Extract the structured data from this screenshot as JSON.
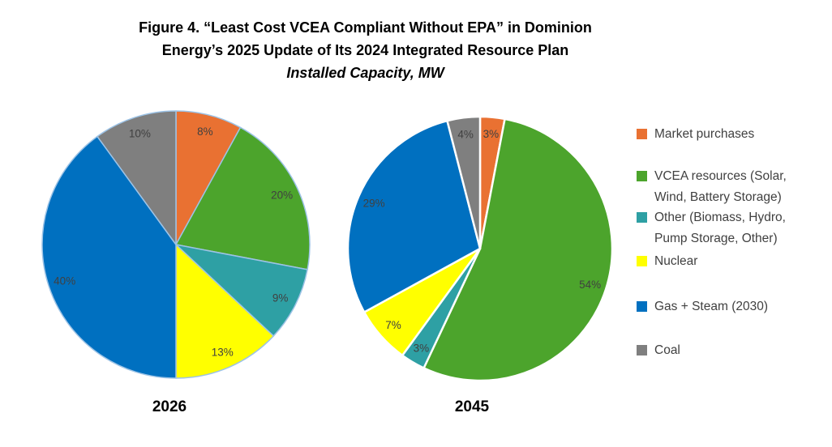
{
  "title": {
    "line1": "Figure 4. “Least Cost VCEA Compliant Without EPA” in Dominion",
    "line2": "Energy’s 2025 Update of Its 2024 Integrated Resource Plan",
    "line3": "Installed Capacity, MW"
  },
  "colors": {
    "market_purchases": "#E97132",
    "vcea_resources": "#4CA42C",
    "other": "#2EA0A4",
    "nuclear": "#FFFF00",
    "gas_steam": "#0070C0",
    "coal": "#7F7F7F",
    "data_label_text": "#404040",
    "left_pie_slice_border": "#9DC3E6",
    "right_pie_slice_border": "#FFFFFF"
  },
  "legend": {
    "position": "right",
    "items": [
      {
        "label": "Market purchases",
        "color": "#E97132"
      },
      {
        "label": "VCEA resources (Solar, Wind, Battery Storage)",
        "color": "#4CA42C"
      },
      {
        "label": "Other (Biomass, Hydro, Pump Storage, Other)",
        "color": "#2EA0A4"
      },
      {
        "label": "Nuclear",
        "color": "#FFFF00"
      },
      {
        "label": "Gas + Steam (2030)",
        "color": "#0070C0"
      },
      {
        "label": "Coal",
        "color": "#7F7F7F"
      }
    ]
  },
  "chart_data": [
    {
      "type": "pie",
      "title": "2026",
      "categories": [
        "Market purchases",
        "VCEA resources (Solar, Wind, Battery Storage)",
        "Other (Biomass, Hydro, Pump Storage, Other)",
        "Nuclear",
        "Gas + Steam (2030)",
        "Coal"
      ],
      "values": [
        8,
        20,
        9,
        13,
        40,
        10
      ],
      "labels": [
        "8%",
        "20%",
        "9%",
        "13%",
        "40%",
        "10%"
      ],
      "colors": [
        "#E97132",
        "#4CA42C",
        "#2EA0A4",
        "#FFFF00",
        "#0070C0",
        "#7F7F7F"
      ],
      "unit": "%",
      "start_angle_deg": 0,
      "direction": "clockwise",
      "slice_border_color": "#9DC3E6",
      "slice_border_width": 1.5
    },
    {
      "type": "pie",
      "title": "2045",
      "categories": [
        "Market purchases",
        "VCEA resources (Solar, Wind, Battery Storage)",
        "Other (Biomass, Hydro, Pump Storage, Other)",
        "Nuclear",
        "Gas + Steam (2030)",
        "Coal"
      ],
      "values": [
        3,
        54,
        3,
        7,
        29,
        4
      ],
      "labels": [
        "3%",
        "54%",
        "3%",
        "7%",
        "29%",
        "4%"
      ],
      "colors": [
        "#E97132",
        "#4CA42C",
        "#2EA0A4",
        "#FFFF00",
        "#0070C0",
        "#7F7F7F"
      ],
      "unit": "%",
      "start_angle_deg": 0,
      "direction": "clockwise",
      "slice_border_color": "#FFFFFF",
      "slice_border_width": 2.5
    }
  ]
}
